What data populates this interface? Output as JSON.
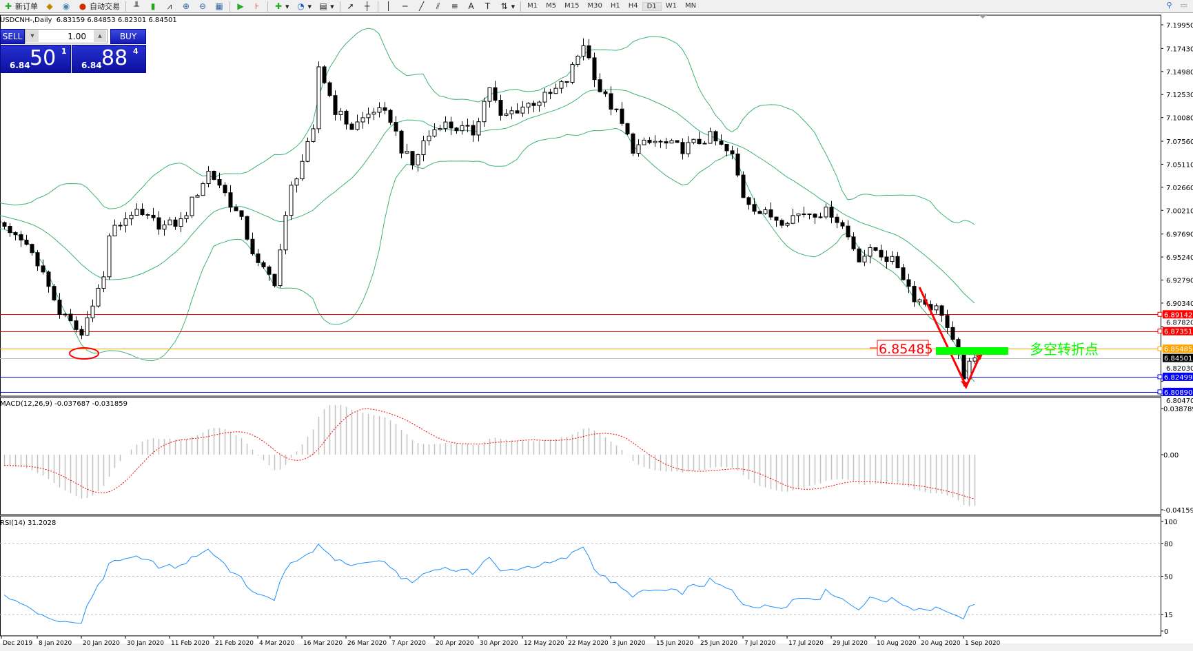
{
  "toolbar": {
    "new_order": "新订单",
    "auto_trading": "自动交易",
    "timeframes": [
      "M1",
      "M5",
      "M15",
      "M30",
      "H1",
      "H4",
      "D1",
      "W1",
      "MN"
    ],
    "active_timeframe": "D1"
  },
  "chart": {
    "title": "USDCNH-,Daily  6.83159 6.84853 6.82301 6.84501",
    "symbol": "USDCNH-",
    "period": "Daily",
    "ohlc": {
      "open": "6.83159",
      "high": "6.84853",
      "low": "6.82301",
      "close": "6.84501"
    }
  },
  "one_click": {
    "sell_label": "SELL",
    "buy_label": "BUY",
    "lot": "1.00",
    "sell_small": "6.84",
    "sell_big": "50",
    "sell_pip": "1",
    "buy_small": "6.84",
    "buy_big": "88",
    "buy_pip": "4"
  },
  "price_axis": [
    "7.19950",
    "7.17430",
    "7.14980",
    "7.12530",
    "7.10080",
    "7.07560",
    "7.05110",
    "7.02660",
    "7.00210",
    "6.97690",
    "6.95240",
    "6.92790",
    "6.90340",
    "6.87820",
    "6.82030",
    "6.80470"
  ],
  "levels": [
    {
      "value": "6.89142",
      "color": "#ff0000"
    },
    {
      "value": "6.87351",
      "color": "#ff0000"
    },
    {
      "value": "6.85485",
      "color": "#ffa500"
    },
    {
      "value": "6.84501",
      "color": "#000000",
      "line": "#c0c0c0"
    },
    {
      "value": "6.82499",
      "color": "#0000ff"
    },
    {
      "value": "6.80890",
      "color": "#0000ff"
    }
  ],
  "annotations": {
    "price_box": "6.85485",
    "turning_point_text": "多空转折点",
    "green_color": "#00ff00",
    "red_color": "#ff0000"
  },
  "date_labels": [
    "Dec 2019",
    "8 Jan 2020",
    "20 Jan 2020",
    "30 Jan 2020",
    "11 Feb 2020",
    "21 Feb 2020",
    "4 Mar 2020",
    "16 Mar 2020",
    "26 Mar 2020",
    "7 Apr 2020",
    "20 Apr 2020",
    "30 Apr 2020",
    "12 May 2020",
    "22 May 2020",
    "3 Jun 2020",
    "15 Jun 2020",
    "25 Jun 2020",
    "7 Jul 2020",
    "17 Jul 2020",
    "29 Jul 2020",
    "10 Aug 2020",
    "20 Aug 2020",
    "1 Sep 2020"
  ],
  "macd": {
    "label": "MACD(12,26,9) -0.037687 -0.031859",
    "axis": [
      "0.038789",
      "0.00",
      "-0.04159"
    ],
    "signal_color": "#ff0000",
    "hist_color": "#c0c0c0"
  },
  "rsi": {
    "label": "RSI(14) 31.2028",
    "axis": [
      "100",
      "80",
      "50",
      "15",
      "0"
    ],
    "levels": [
      80,
      50,
      15
    ],
    "color": "#1e90ff"
  },
  "chart_data": {
    "type": "candlestick",
    "indicators": [
      "Bollinger Bands",
      "MACD(12,26,9)",
      "RSI(14)"
    ],
    "band_color": "#3cb371",
    "close_keypoints": [
      [
        "2019-12-30",
        6.985
      ],
      [
        "2020-01-07",
        6.96
      ],
      [
        "2020-01-14",
        6.894
      ],
      [
        "2020-01-20",
        6.869
      ],
      [
        "2020-01-22",
        6.906
      ],
      [
        "2020-01-24",
        6.93
      ],
      [
        "2020-01-27",
        6.976
      ],
      [
        "2020-01-31",
        7.0
      ],
      [
        "2020-02-10",
        6.985
      ],
      [
        "2020-02-13",
        6.99
      ],
      [
        "2020-02-20",
        7.043
      ],
      [
        "2020-02-24",
        7.03
      ],
      [
        "2020-02-28",
        6.99
      ],
      [
        "2020-03-04",
        6.943
      ],
      [
        "2020-03-09",
        6.927
      ],
      [
        "2020-03-12",
        7.026
      ],
      [
        "2020-03-18",
        7.084
      ],
      [
        "2020-03-19",
        7.155
      ],
      [
        "2020-03-24",
        7.109
      ],
      [
        "2020-03-27",
        7.09
      ],
      [
        "2020-04-02",
        7.109
      ],
      [
        "2020-04-07",
        7.1
      ],
      [
        "2020-04-09",
        7.068
      ],
      [
        "2020-04-13",
        7.05
      ],
      [
        "2020-04-15",
        7.075
      ],
      [
        "2020-04-20",
        7.095
      ],
      [
        "2020-04-28",
        7.085
      ],
      [
        "2020-05-01",
        7.134
      ],
      [
        "2020-05-05",
        7.1
      ],
      [
        "2020-05-08",
        7.11
      ],
      [
        "2020-05-18",
        7.125
      ],
      [
        "2020-05-21",
        7.14
      ],
      [
        "2020-05-26",
        7.18
      ],
      [
        "2020-05-29",
        7.13
      ],
      [
        "2020-06-03",
        7.105
      ],
      [
        "2020-06-08",
        7.068
      ],
      [
        "2020-06-12",
        7.075
      ],
      [
        "2020-06-19",
        7.068
      ],
      [
        "2020-06-26",
        7.08
      ],
      [
        "2020-07-02",
        7.059
      ],
      [
        "2020-07-06",
        7.018
      ],
      [
        "2020-07-09",
        7.0
      ],
      [
        "2020-07-15",
        6.992
      ],
      [
        "2020-07-21",
        7.0
      ],
      [
        "2020-07-28",
        7.0
      ],
      [
        "2020-07-30",
        6.985
      ],
      [
        "2020-08-04",
        6.952
      ],
      [
        "2020-08-07",
        6.96
      ],
      [
        "2020-08-13",
        6.943
      ],
      [
        "2020-08-18",
        6.91
      ],
      [
        "2020-08-25",
        6.894
      ],
      [
        "2020-08-27",
        6.86
      ],
      [
        "2020-08-31",
        6.827
      ],
      [
        "2020-09-02",
        6.845
      ]
    ]
  }
}
